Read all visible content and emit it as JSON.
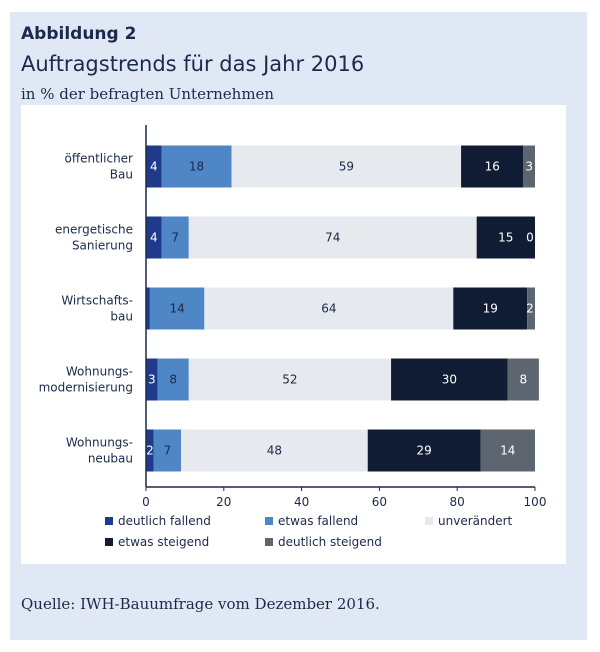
{
  "figure": {
    "label": "Abbildung 2",
    "title": "Auftragstrends für das Jahr 2016",
    "subtitle": "in % der befragten Unternehmen",
    "source": "Quelle: IWH-Bauumfrage vom Dezember 2016."
  },
  "colors": {
    "frame_bg": "#dfe8f4",
    "text": "#1b2a4a"
  },
  "chart_data": {
    "type": "bar",
    "orientation": "horizontal",
    "stacked": true,
    "categories": [
      [
        "öffentlicher",
        "Bau"
      ],
      [
        "energetische",
        "Sanierung"
      ],
      [
        "Wirtschafts-",
        "bau"
      ],
      [
        "Wohnungs-",
        "modernisierung"
      ],
      [
        "Wohnungs-",
        "neubau"
      ]
    ],
    "series": [
      {
        "name": "deutlich fallend",
        "color": "#1f3a8a",
        "label_color": "#ffffff",
        "values": [
          4,
          4,
          1,
          3,
          2
        ]
      },
      {
        "name": "etwas fallend",
        "color": "#4f86c6",
        "label_color": "#1b2a4a",
        "values": [
          18,
          7,
          14,
          8,
          7
        ]
      },
      {
        "name": "unverändert",
        "color": "#e6e9ee",
        "label_color": "#1b2a4a",
        "values": [
          59,
          74,
          64,
          52,
          48
        ]
      },
      {
        "name": "etwas steigend",
        "color": "#101c33",
        "label_color": "#ffffff",
        "values": [
          16,
          15,
          19,
          30,
          29
        ]
      },
      {
        "name": "deutlich steigend",
        "color": "#5d6670",
        "label_color": "#ffffff",
        "values": [
          3,
          0,
          2,
          8,
          14
        ]
      }
    ],
    "data_labels": [
      [
        "4",
        "18",
        "59",
        "16",
        "3"
      ],
      [
        "4",
        "7",
        "74",
        "15",
        "0"
      ],
      [
        "",
        "14",
        "64",
        "19",
        "2"
      ],
      [
        "3",
        "8",
        "52",
        "30",
        "8"
      ],
      [
        "2",
        "7",
        "48",
        "29",
        "14"
      ]
    ],
    "xlim": [
      0,
      100
    ],
    "xticks": [
      "0",
      "20",
      "40",
      "60",
      "80",
      "100"
    ],
    "grid": false,
    "legend_position": "bottom"
  }
}
